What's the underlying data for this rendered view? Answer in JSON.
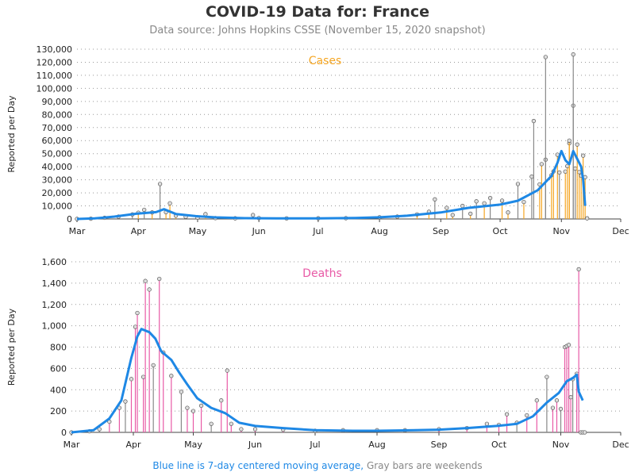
{
  "title": "COVID-19 Data for: France",
  "subtitle": "Data source: Johns Hopkins CSSE (November 15, 2020 snapshot)",
  "footer": {
    "blue_text": "Blue line is 7-day centered moving average,",
    "gray_text": "Gray bars are weekends"
  },
  "colors": {
    "cases": "#f5a623",
    "deaths": "#e85aa6",
    "average": "#1e88e5",
    "weekend": "#888888",
    "grid": "#999999"
  },
  "chart_data": [
    {
      "type": "bar",
      "title": "Cases",
      "ylabel": "Reported per Day",
      "ylim": [
        0,
        130000
      ],
      "yticks": [
        0,
        10000,
        20000,
        30000,
        40000,
        50000,
        60000,
        70000,
        80000,
        90000,
        100000,
        110000,
        120000,
        130000
      ],
      "ytick_labels": [
        "0",
        "10,000",
        "20,000",
        "30,000",
        "40,000",
        "50,000",
        "60,000",
        "70,000",
        "80,000",
        "90,000",
        "100,000",
        "110,000",
        "120,000",
        "130,000"
      ],
      "xtick_labels": [
        "Mar",
        "Apr",
        "May",
        "Jun",
        "Jul",
        "Aug",
        "Sep",
        "Oct",
        "Nov",
        "Dec"
      ],
      "xtick_dates": [
        "2020-03-01",
        "2020-04-01",
        "2020-05-01",
        "2020-06-01",
        "2020-07-01",
        "2020-08-01",
        "2020-09-01",
        "2020-10-01",
        "2020-11-01",
        "2020-12-01"
      ],
      "daily_points": [
        [
          "2020-03-01",
          30
        ],
        [
          "2020-03-08",
          250
        ],
        [
          "2020-03-15",
          900
        ],
        [
          "2020-03-22",
          1800
        ],
        [
          "2020-03-29",
          3500
        ],
        [
          "2020-04-01",
          4800
        ],
        [
          "2020-04-04",
          7000
        ],
        [
          "2020-04-08",
          5000
        ],
        [
          "2020-04-12",
          26800
        ],
        [
          "2020-04-15",
          5200
        ],
        [
          "2020-04-17",
          12000
        ],
        [
          "2020-04-20",
          2500
        ],
        [
          "2020-04-25",
          1700
        ],
        [
          "2020-05-01",
          1000
        ],
        [
          "2020-05-05",
          3700
        ],
        [
          "2020-05-10",
          700
        ],
        [
          "2020-05-20",
          500
        ],
        [
          "2020-05-29",
          3000
        ],
        [
          "2020-06-01",
          700
        ],
        [
          "2020-06-15",
          450
        ],
        [
          "2020-07-01",
          500
        ],
        [
          "2020-07-15",
          600
        ],
        [
          "2020-08-01",
          1300
        ],
        [
          "2020-08-10",
          1800
        ],
        [
          "2020-08-20",
          3500
        ],
        [
          "2020-08-26",
          5500
        ],
        [
          "2020-08-29",
          15000
        ],
        [
          "2020-09-04",
          8500
        ],
        [
          "2020-09-07",
          3000
        ],
        [
          "2020-09-12",
          10000
        ],
        [
          "2020-09-16",
          4000
        ],
        [
          "2020-09-19",
          13500
        ],
        [
          "2020-09-23",
          12000
        ],
        [
          "2020-09-26",
          16000
        ],
        [
          "2020-10-02",
          14000
        ],
        [
          "2020-10-05",
          5000
        ],
        [
          "2020-10-10",
          26800
        ],
        [
          "2020-10-13",
          13000
        ],
        [
          "2020-10-17",
          32400
        ],
        [
          "2020-10-21",
          26500
        ],
        [
          "2020-10-24",
          45400
        ],
        [
          "2020-10-27",
          33500
        ],
        [
          "2020-10-28",
          36400
        ],
        [
          "2020-10-30",
          49200
        ],
        [
          "2020-10-31",
          35600
        ],
        [
          "2020-11-03",
          36300
        ],
        [
          "2020-11-04",
          40500
        ],
        [
          "2020-11-05",
          58000
        ],
        [
          "2020-11-07",
          86800
        ],
        [
          "2020-11-08",
          38600
        ],
        [
          "2020-11-10",
          35900
        ],
        [
          "2020-11-11",
          33100
        ],
        [
          "2020-11-12",
          48500
        ],
        [
          "2020-11-13",
          32000
        ],
        [
          "2020-11-14",
          500
        ]
      ],
      "highlight_points": [
        [
          "2020-10-24",
          124000
        ],
        [
          "2020-11-07",
          126000
        ],
        [
          "2020-10-18",
          75000
        ],
        [
          "2020-11-05",
          60000
        ],
        [
          "2020-11-09",
          57000
        ],
        [
          "2020-10-22",
          42000
        ]
      ],
      "moving_average": [
        [
          "2020-03-01",
          0
        ],
        [
          "2020-03-10",
          400
        ],
        [
          "2020-03-20",
          1800
        ],
        [
          "2020-03-31",
          4000
        ],
        [
          "2020-04-10",
          5200
        ],
        [
          "2020-04-14",
          7500
        ],
        [
          "2020-04-20",
          3800
        ],
        [
          "2020-04-30",
          2200
        ],
        [
          "2020-05-10",
          1200
        ],
        [
          "2020-05-25",
          600
        ],
        [
          "2020-06-10",
          400
        ],
        [
          "2020-07-01",
          500
        ],
        [
          "2020-07-20",
          700
        ],
        [
          "2020-08-01",
          1300
        ],
        [
          "2020-08-15",
          2500
        ],
        [
          "2020-09-01",
          5000
        ],
        [
          "2020-09-15",
          8500
        ],
        [
          "2020-10-01",
          11000
        ],
        [
          "2020-10-10",
          14000
        ],
        [
          "2020-10-20",
          22000
        ],
        [
          "2020-10-27",
          33000
        ],
        [
          "2020-10-30",
          43000
        ],
        [
          "2020-11-01",
          52000
        ],
        [
          "2020-11-03",
          45000
        ],
        [
          "2020-11-05",
          42000
        ],
        [
          "2020-11-07",
          52000
        ],
        [
          "2020-11-09",
          46000
        ],
        [
          "2020-11-11",
          40000
        ],
        [
          "2020-11-12",
          30000
        ],
        [
          "2020-11-13",
          10000
        ]
      ]
    },
    {
      "type": "bar",
      "title": "Deaths",
      "ylabel": "Reported per Day",
      "ylim": [
        0,
        1600
      ],
      "yticks": [
        0,
        200,
        400,
        600,
        800,
        1000,
        1200,
        1400,
        1600
      ],
      "ytick_labels": [
        "0",
        "200",
        "400",
        "600",
        "800",
        "1,000",
        "1,200",
        "1,400",
        "1,600"
      ],
      "xtick_labels": [
        "Mar",
        "Apr",
        "May",
        "Jun",
        "Jul",
        "Aug",
        "Sep",
        "Oct",
        "Nov",
        "Dec"
      ],
      "xtick_dates": [
        "2020-03-01",
        "2020-04-01",
        "2020-05-01",
        "2020-06-01",
        "2020-07-01",
        "2020-08-01",
        "2020-09-01",
        "2020-10-01",
        "2020-11-01",
        "2020-12-01"
      ],
      "daily_points": [
        [
          "2020-03-01",
          0
        ],
        [
          "2020-03-10",
          10
        ],
        [
          "2020-03-15",
          30
        ],
        [
          "2020-03-20",
          100
        ],
        [
          "2020-03-25",
          230
        ],
        [
          "2020-03-28",
          290
        ],
        [
          "2020-03-31",
          500
        ],
        [
          "2020-04-02",
          990
        ],
        [
          "2020-04-03",
          1120
        ],
        [
          "2020-04-06",
          520
        ],
        [
          "2020-04-07",
          1420
        ],
        [
          "2020-04-09",
          1340
        ],
        [
          "2020-04-11",
          630
        ],
        [
          "2020-04-14",
          1440
        ],
        [
          "2020-04-16",
          750
        ],
        [
          "2020-04-20",
          530
        ],
        [
          "2020-04-25",
          380
        ],
        [
          "2020-04-28",
          230
        ],
        [
          "2020-05-01",
          200
        ],
        [
          "2020-05-05",
          250
        ],
        [
          "2020-05-10",
          80
        ],
        [
          "2020-05-15",
          300
        ],
        [
          "2020-05-18",
          580
        ],
        [
          "2020-05-20",
          80
        ],
        [
          "2020-05-25",
          30
        ],
        [
          "2020-06-01",
          30
        ],
        [
          "2020-06-15",
          25
        ],
        [
          "2020-07-01",
          15
        ],
        [
          "2020-07-15",
          20
        ],
        [
          "2020-08-01",
          20
        ],
        [
          "2020-08-15",
          20
        ],
        [
          "2020-09-01",
          30
        ],
        [
          "2020-09-15",
          40
        ],
        [
          "2020-09-25",
          80
        ],
        [
          "2020-10-01",
          70
        ],
        [
          "2020-10-05",
          170
        ],
        [
          "2020-10-10",
          90
        ],
        [
          "2020-10-15",
          160
        ],
        [
          "2020-10-20",
          300
        ],
        [
          "2020-10-25",
          520
        ],
        [
          "2020-10-28",
          230
        ],
        [
          "2020-10-30",
          300
        ],
        [
          "2020-11-01",
          220
        ],
        [
          "2020-11-03",
          800
        ],
        [
          "2020-11-04",
          810
        ],
        [
          "2020-11-05",
          820
        ],
        [
          "2020-11-06",
          330
        ],
        [
          "2020-11-07",
          500
        ],
        [
          "2020-11-09",
          550
        ],
        [
          "2020-11-10",
          1530
        ],
        [
          "2020-11-11",
          0
        ],
        [
          "2020-11-12",
          0
        ],
        [
          "2020-11-13",
          0
        ]
      ],
      "moving_average": [
        [
          "2020-03-01",
          0
        ],
        [
          "2020-03-12",
          20
        ],
        [
          "2020-03-20",
          130
        ],
        [
          "2020-03-26",
          300
        ],
        [
          "2020-03-31",
          700
        ],
        [
          "2020-04-03",
          900
        ],
        [
          "2020-04-05",
          970
        ],
        [
          "2020-04-09",
          940
        ],
        [
          "2020-04-12",
          880
        ],
        [
          "2020-04-15",
          760
        ],
        [
          "2020-04-20",
          680
        ],
        [
          "2020-04-24",
          560
        ],
        [
          "2020-04-28",
          450
        ],
        [
          "2020-05-03",
          320
        ],
        [
          "2020-05-10",
          230
        ],
        [
          "2020-05-17",
          180
        ],
        [
          "2020-05-24",
          90
        ],
        [
          "2020-06-01",
          60
        ],
        [
          "2020-06-15",
          40
        ],
        [
          "2020-07-01",
          20
        ],
        [
          "2020-07-20",
          15
        ],
        [
          "2020-08-01",
          15
        ],
        [
          "2020-08-20",
          20
        ],
        [
          "2020-09-01",
          25
        ],
        [
          "2020-09-15",
          40
        ],
        [
          "2020-09-30",
          60
        ],
        [
          "2020-10-10",
          80
        ],
        [
          "2020-10-18",
          150
        ],
        [
          "2020-10-25",
          280
        ],
        [
          "2020-10-31",
          370
        ],
        [
          "2020-11-04",
          480
        ],
        [
          "2020-11-07",
          510
        ],
        [
          "2020-11-09",
          540
        ],
        [
          "2020-11-10",
          380
        ],
        [
          "2020-11-12",
          300
        ]
      ]
    }
  ]
}
